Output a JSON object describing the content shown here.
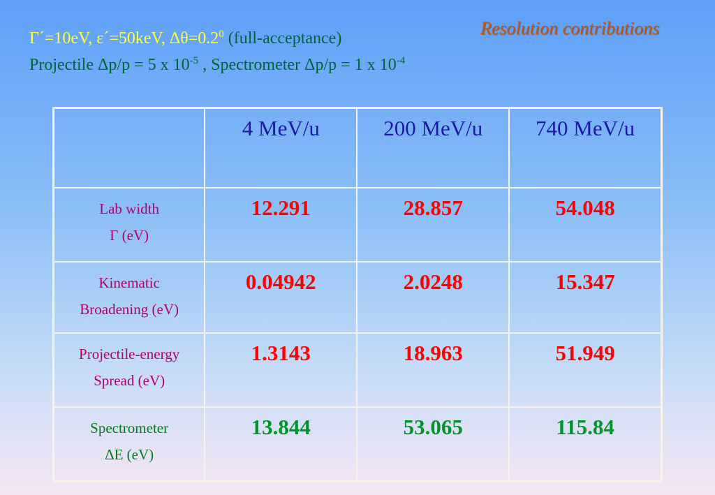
{
  "header": {
    "params": "Γ´=10eV, ε´=50keV, Δθ=0.2",
    "params_sup": "0",
    "params_note": " (full-acceptance)",
    "line2_part1": "Projectile Δp/p = 5 x 10",
    "line2_sup1": "-5",
    "line2_part2": " ,  Spectrometer Δp/p = 1 x 10",
    "line2_sup2": "-4"
  },
  "title": "Resolution contributions",
  "colors": {
    "highlight_yellow": "#ffff33",
    "text_green": "#006633",
    "title_orange": "#cc5500",
    "header_blue": "#1a1aa6",
    "label_magenta": "#b0006a",
    "value_red": "#ff0000",
    "value_green": "#00952a"
  },
  "table": {
    "columns": [
      "",
      "4 MeV/u",
      "200 MeV/u",
      "740 MeV/u"
    ],
    "rows": [
      {
        "label1": "Lab width",
        "label2": "Γ (eV)",
        "values": [
          "12.291",
          "28.857",
          "54.048"
        ]
      },
      {
        "label1": "Kinematic",
        "label2": "Broadening (eV)",
        "values": [
          "0.04942",
          "2.0248",
          "15.347"
        ]
      },
      {
        "label1": "Projectile-energy",
        "label2": "Spread (eV)",
        "values": [
          "1.3143",
          "18.963",
          "51.949"
        ]
      },
      {
        "label1": "Spectrometer",
        "label2": "ΔE (eV)",
        "values": [
          "13.844",
          "53.065",
          "115.84"
        ]
      }
    ]
  }
}
